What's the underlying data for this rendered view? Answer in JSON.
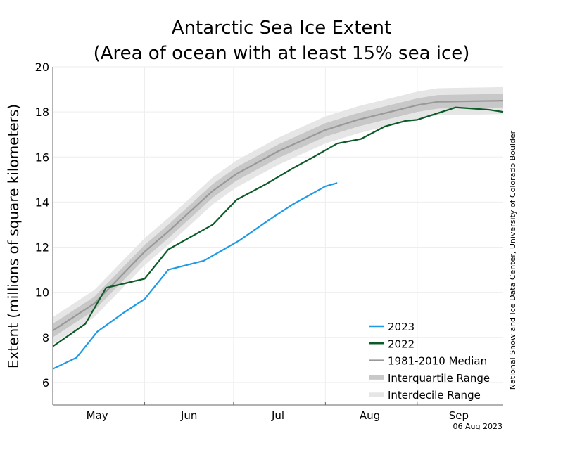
{
  "chart_data": {
    "type": "line",
    "title": "Antarctic Sea Ice Extent",
    "subtitle": "(Area of ocean with at least 15% sea ice)",
    "ylabel": "Extent (millions of square kilometers)",
    "ylim": [
      5,
      20
    ],
    "yticks": [
      6,
      8,
      10,
      12,
      14,
      16,
      18,
      20
    ],
    "xlim": [
      "05-01",
      "09-30"
    ],
    "month_labels": [
      {
        "label": "May",
        "at": "05-16"
      },
      {
        "label": "Jun",
        "at": "06-16"
      },
      {
        "label": "Jul",
        "at": "07-16"
      },
      {
        "label": "Aug",
        "at": "08-16"
      },
      {
        "label": "Sep",
        "at": "09-15"
      }
    ],
    "month_ticks": [
      "06-01",
      "07-01",
      "08-01",
      "09-01"
    ],
    "grid": true,
    "legend_placement": "bottom-right",
    "date_stamp": "06 Aug 2023",
    "credit": "National Snow and Ice Data Center, University of Colorado Boulder",
    "series": [
      {
        "name": "2023",
        "color": "#1f9be6",
        "x": [
          "05-01",
          "05-09",
          "05-16",
          "05-25",
          "06-01",
          "06-09",
          "06-21",
          "07-03",
          "07-14",
          "07-21",
          "08-01",
          "08-05"
        ],
        "y": [
          6.6,
          7.1,
          8.25,
          9.1,
          9.7,
          11.0,
          11.4,
          12.3,
          13.3,
          13.9,
          14.7,
          14.85
        ]
      },
      {
        "name": "2022",
        "color": "#0b5a27",
        "x": [
          "05-01",
          "05-12",
          "05-19",
          "06-01",
          "06-09",
          "06-24",
          "07-02",
          "07-12",
          "07-21",
          "07-28",
          "08-05",
          "08-13",
          "08-21",
          "08-28",
          "09-01",
          "09-14",
          "09-25",
          "09-30"
        ],
        "y": [
          7.6,
          8.6,
          10.2,
          10.6,
          11.9,
          13.0,
          14.1,
          14.8,
          15.5,
          16.0,
          16.6,
          16.8,
          17.35,
          17.6,
          17.65,
          18.2,
          18.1,
          18.0
        ]
      },
      {
        "name": "1981-2010 Median",
        "color": "#999999",
        "x": [
          "05-01",
          "05-15",
          "06-01",
          "06-09",
          "06-24",
          "07-02",
          "07-16",
          "08-01",
          "08-12",
          "09-01",
          "09-08",
          "09-30"
        ],
        "y": [
          8.3,
          9.5,
          11.8,
          12.7,
          14.5,
          15.25,
          16.25,
          17.2,
          17.65,
          18.3,
          18.45,
          18.5
        ]
      }
    ],
    "ranges": [
      {
        "name": "Interquartile Range",
        "color": "#c8c8c8",
        "spread": 0.3
      },
      {
        "name": "Interdecile Range",
        "color": "#e6e6e6",
        "spread": 0.6
      }
    ]
  }
}
